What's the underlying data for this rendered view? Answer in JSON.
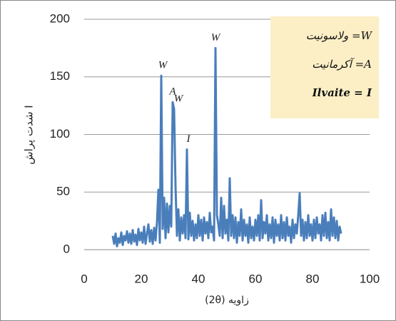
{
  "chart_data": {
    "type": "line",
    "y_label": "شدت پراش I",
    "x_label": "زاویه (2θ)",
    "xlim": [
      0,
      100
    ],
    "xticks": [
      0,
      20,
      40,
      60,
      80,
      100
    ],
    "ylim": [
      0,
      200
    ],
    "yticks": [
      0,
      50,
      100,
      150,
      200
    ],
    "grid": true,
    "series": [
      {
        "color": "#4a7ebb",
        "x": [
          10,
          10.5,
          11,
          11.5,
          12,
          12.5,
          13,
          13.5,
          14,
          14.5,
          15,
          15.5,
          16,
          16.5,
          17,
          17.5,
          18,
          18.5,
          19,
          19.5,
          20,
          20.5,
          21,
          21.5,
          22,
          22.5,
          23,
          23.5,
          24,
          24.5,
          25,
          25.5,
          26,
          26.5,
          27,
          27.5,
          28,
          28.5,
          29,
          29.5,
          30,
          30.5,
          31,
          31.5,
          32,
          32.5,
          33,
          33.5,
          34,
          34.5,
          35,
          35.5,
          36,
          36.5,
          37,
          37.5,
          38,
          38.5,
          39,
          39.5,
          40,
          40.5,
          41,
          41.5,
          42,
          42.5,
          43,
          43.5,
          44,
          44.5,
          45,
          45.5,
          46,
          46.5,
          47,
          47.5,
          48,
          48.5,
          49,
          49.5,
          50,
          50.5,
          51,
          51.5,
          52,
          52.5,
          53,
          53.5,
          54,
          54.5,
          55,
          55.5,
          56,
          56.5,
          57,
          57.5,
          58,
          58.5,
          59,
          59.5,
          60,
          60.5,
          61,
          61.5,
          62,
          62.5,
          63,
          63.5,
          64,
          64.5,
          65,
          65.5,
          66,
          66.5,
          67,
          67.5,
          68,
          68.5,
          69,
          69.5,
          70,
          70.5,
          71,
          71.5,
          72,
          72.5,
          73,
          73.5,
          74,
          74.5,
          75,
          75.5,
          76,
          76.5,
          77,
          77.5,
          78,
          78.5,
          79,
          79.5,
          80,
          80.5,
          81,
          81.5,
          82,
          82.5,
          83,
          83.5,
          84,
          84.5,
          85,
          85.5,
          86,
          86.5,
          87,
          87.5,
          88,
          88.5,
          89,
          89.5,
          90
        ],
        "values": [
          12,
          5,
          14,
          3,
          10,
          6,
          15,
          4,
          12,
          8,
          16,
          6,
          14,
          5,
          17,
          7,
          13,
          4,
          18,
          8,
          15,
          6,
          20,
          5,
          14,
          22,
          7,
          17,
          5,
          19,
          8,
          24,
          52,
          6,
          151,
          18,
          45,
          10,
          40,
          15,
          38,
          20,
          128,
          122,
          55,
          12,
          35,
          8,
          28,
          14,
          30,
          10,
          87,
          9,
          32,
          12,
          25,
          8,
          22,
          10,
          30,
          12,
          26,
          8,
          28,
          14,
          24,
          10,
          32,
          15,
          20,
          8,
          175,
          30,
          22,
          12,
          45,
          10,
          38,
          14,
          26,
          8,
          62,
          12,
          30,
          10,
          28,
          6,
          24,
          12,
          35,
          8,
          26,
          12,
          22,
          6,
          28,
          10,
          20,
          8,
          26,
          12,
          30,
          8,
          43,
          10,
          24,
          14,
          30,
          8,
          22,
          10,
          28,
          6,
          26,
          12,
          22,
          8,
          30,
          10,
          24,
          8,
          28,
          12,
          20,
          6,
          26,
          10,
          22,
          14,
          30,
          49,
          12,
          26,
          8,
          24,
          10,
          30,
          12,
          22,
          8,
          26,
          10,
          28,
          14,
          22,
          8,
          30,
          12,
          32,
          10,
          24,
          8,
          35,
          12,
          28,
          10,
          25,
          8,
          20,
          14
        ]
      }
    ],
    "annotations": [
      {
        "text": "W",
        "x": 27.5,
        "y": 151
      },
      {
        "text": "A",
        "x": 31,
        "y": 128
      },
      {
        "text": "W",
        "x": 33,
        "y": 122
      },
      {
        "text": "I",
        "x": 36.5,
        "y": 87
      },
      {
        "text": "W",
        "x": 46,
        "y": 175
      }
    ],
    "legend": [
      "W= ولاسونیت",
      "A= آکرمانیت",
      "Ilvaite = I"
    ]
  }
}
